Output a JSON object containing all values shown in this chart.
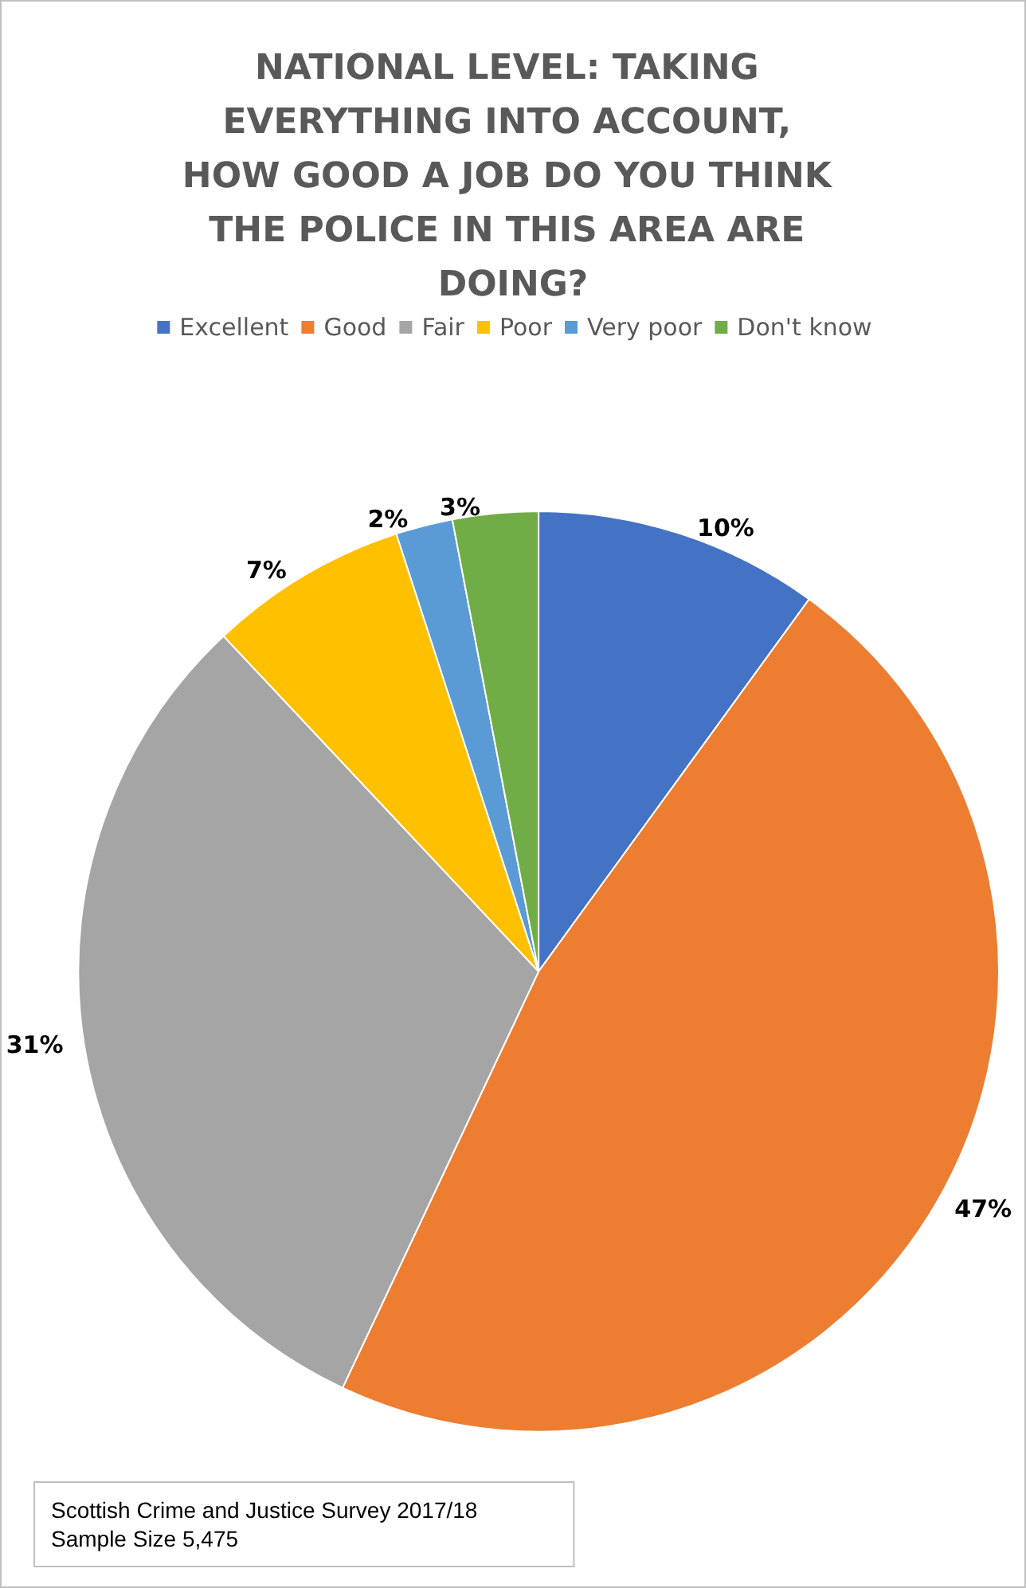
{
  "chart_data": {
    "type": "pie",
    "title": "NATIONAL LEVEL: TAKING EVERYTHING INTO ACCOUNT, HOW GOOD A JOB DO YOU THINK THE POLICE IN THIS AREA ARE DOING?",
    "categories": [
      "Excellent",
      "Good",
      "Fair",
      "Poor",
      "Very poor",
      "Don't know"
    ],
    "values": [
      10,
      47,
      31,
      7,
      2,
      3
    ],
    "colors": [
      "#4472c4",
      "#ed7d31",
      "#a5a5a5",
      "#ffc000",
      "#5b9bd5",
      "#70ad47"
    ],
    "value_labels": [
      "10%",
      "47%",
      "31%",
      "7%",
      "2%",
      "3%"
    ],
    "legend": "top",
    "annotations": [
      "Scottish Crime and Justice Survey 2017/18",
      "Sample Size 5,475"
    ]
  }
}
